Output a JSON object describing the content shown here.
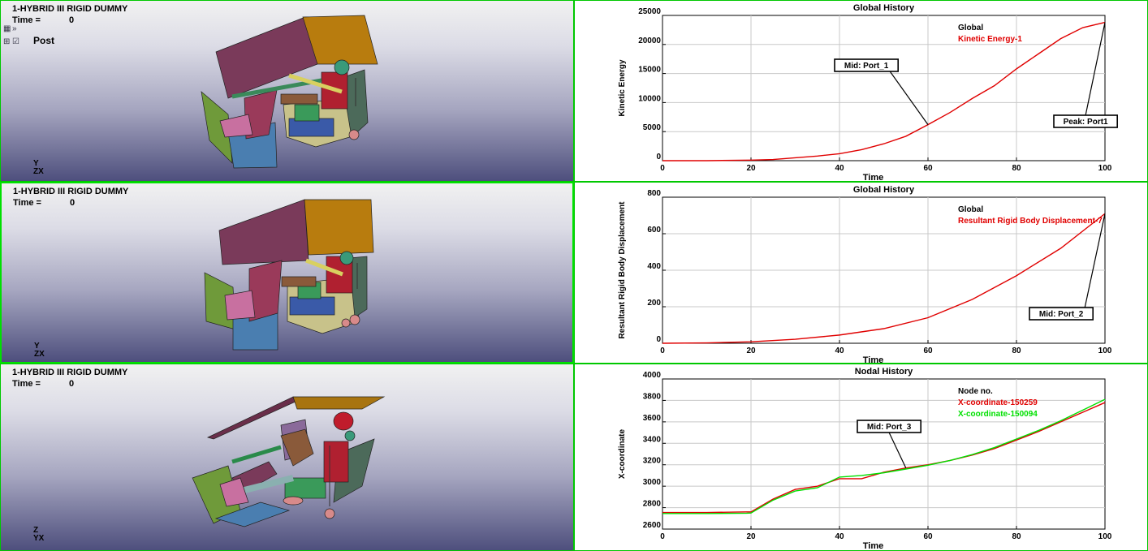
{
  "viewports": [
    {
      "title": "1-HYBRID III RIGID DUMMY",
      "time_label": "Time =",
      "time_value": "0",
      "post_label": "Post",
      "triad": [
        "Y",
        "Z",
        "X"
      ]
    },
    {
      "title": "1-HYBRID III RIGID DUMMY",
      "time_label": "Time =",
      "time_value": "0",
      "triad": [
        "Y",
        "Z",
        "X"
      ]
    },
    {
      "title": "1-HYBRID III RIGID DUMMY",
      "time_label": "Time =",
      "time_value": "0",
      "triad": [
        "Z",
        "Y",
        "X"
      ]
    }
  ],
  "toolbar_icons": [
    "view-list-icon",
    "double-chevron-icon",
    "grid-icon",
    "checkbox-icon"
  ],
  "colors": {
    "red": "#e00000",
    "green": "#00e000",
    "pane_border": "#00c800"
  },
  "chart_data": [
    {
      "type": "line",
      "title": "Global History",
      "xlabel": "Time",
      "ylabel": "Kinetic Energy",
      "xlim": [
        0,
        100
      ],
      "ylim": [
        0,
        25000
      ],
      "xticks": [
        "0",
        "20",
        "40",
        "60",
        "80",
        "100"
      ],
      "yticks": [
        "0",
        "5000",
        "10000",
        "15000",
        "20000",
        "25000"
      ],
      "legend_header": "Global",
      "series": [
        {
          "name": "Kinetic Energy-1",
          "color": "#e00000",
          "x": [
            0,
            10,
            20,
            25,
            30,
            35,
            40,
            45,
            50,
            55,
            60,
            65,
            70,
            75,
            80,
            85,
            90,
            95,
            100
          ],
          "y": [
            0,
            0,
            100,
            200,
            500,
            800,
            1200,
            1900,
            2900,
            4200,
            6200,
            8300,
            10700,
            12900,
            15800,
            18400,
            21000,
            22900,
            23800
          ]
        }
      ],
      "annotations": [
        {
          "label": "Mid: Port_1",
          "x": 60,
          "y": 6200
        },
        {
          "label": "Peak: Port1",
          "x": 100,
          "y": 23800
        }
      ]
    },
    {
      "type": "line",
      "title": "Global History",
      "xlabel": "Time",
      "ylabel": "Resultant Rigid Body Displacement",
      "xlim": [
        0,
        100
      ],
      "ylim": [
        0,
        800
      ],
      "xticks": [
        "0",
        "20",
        "40",
        "60",
        "80",
        "100"
      ],
      "yticks": [
        "0",
        "200",
        "400",
        "600",
        "800"
      ],
      "legend_header": "Global",
      "series": [
        {
          "name": "Resultant Rigid Body Displacement-7",
          "color": "#e00000",
          "x": [
            0,
            10,
            20,
            30,
            40,
            50,
            60,
            70,
            80,
            90,
            100
          ],
          "y": [
            0,
            2,
            8,
            22,
            45,
            80,
            140,
            240,
            370,
            520,
            710
          ]
        }
      ],
      "annotations": [
        {
          "label": "Mid: Port_2",
          "x": 100,
          "y": 710
        }
      ]
    },
    {
      "type": "line",
      "title": "Nodal History",
      "xlabel": "Time",
      "ylabel": "X-coordinate",
      "xlim": [
        0,
        100
      ],
      "ylim": [
        2600,
        4000
      ],
      "xticks": [
        "0",
        "20",
        "40",
        "60",
        "80",
        "100"
      ],
      "yticks": [
        "2600",
        "2800",
        "3000",
        "3200",
        "3400",
        "3600",
        "3800",
        "4000"
      ],
      "legend_header": "Node no.",
      "series": [
        {
          "name": "X-coordinate-150259",
          "color": "#e00000",
          "x": [
            0,
            10,
            19,
            20,
            25,
            30,
            35,
            40,
            45,
            50,
            55,
            60,
            65,
            70,
            75,
            80,
            85,
            90,
            95,
            100
          ],
          "y": [
            2755,
            2755,
            2760,
            2760,
            2880,
            2970,
            3000,
            3070,
            3070,
            3130,
            3170,
            3200,
            3240,
            3290,
            3350,
            3430,
            3510,
            3600,
            3690,
            3780
          ]
        },
        {
          "name": "X-coordinate-150094",
          "color": "#00e000",
          "x": [
            0,
            10,
            19,
            20,
            25,
            30,
            35,
            40,
            45,
            50,
            55,
            60,
            65,
            70,
            75,
            80,
            85,
            90,
            95,
            100
          ],
          "y": [
            2745,
            2745,
            2748,
            2750,
            2870,
            2955,
            2985,
            3085,
            3100,
            3125,
            3160,
            3195,
            3240,
            3295,
            3360,
            3440,
            3520,
            3610,
            3710,
            3810
          ]
        }
      ],
      "annotations": [
        {
          "label": "Mid: Port_3",
          "x": 55,
          "y": 3170
        }
      ]
    }
  ]
}
